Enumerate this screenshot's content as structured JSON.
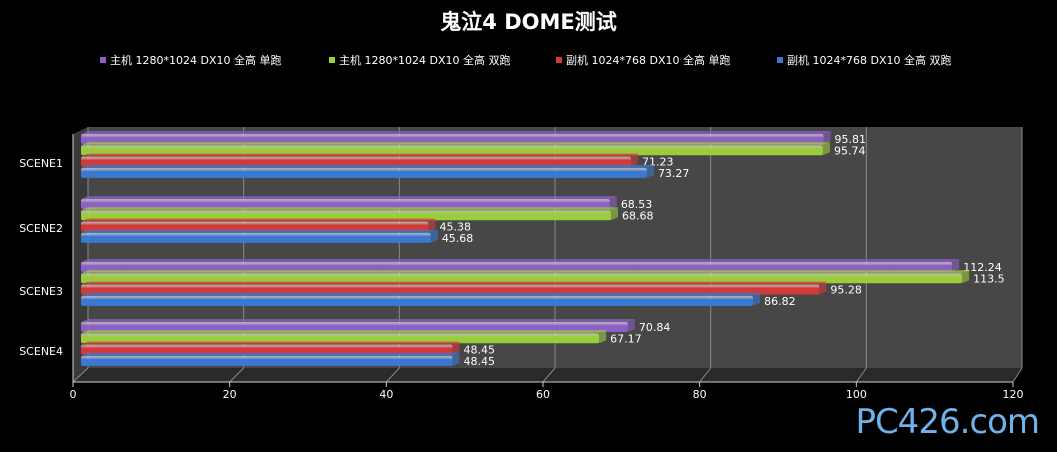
{
  "chart_data": {
    "type": "bar",
    "title": "鬼泣4 DOME测试",
    "categories": [
      "SCENE1",
      "SCENE2",
      "SCENE3",
      "SCENE4"
    ],
    "series": [
      {
        "name": "主机 1280*1024 DX10 全高 单跑",
        "color": "#8e5fc6",
        "values": [
          95.81,
          68.53,
          112.24,
          70.84
        ]
      },
      {
        "name": "主机 1280*1024 DX10 全高 双跑",
        "color": "#9acd3a",
        "values": [
          95.74,
          68.68,
          113.5,
          67.17
        ]
      },
      {
        "name": "副机 1024*768 DX10 全高 单跑",
        "color": "#d23a3a",
        "values": [
          71.23,
          45.38,
          95.28,
          48.45
        ]
      },
      {
        "name": "副机 1024*768 DX10 全高 双跑",
        "color": "#3a78d2",
        "values": [
          73.27,
          45.68,
          86.82,
          48.45
        ]
      }
    ],
    "xlim": [
      0,
      120
    ],
    "xticks": [
      0,
      20,
      40,
      60,
      80,
      100,
      120
    ],
    "orientation": "horizontal",
    "legend": "top",
    "grid": true
  },
  "watermark": "PC426.com"
}
